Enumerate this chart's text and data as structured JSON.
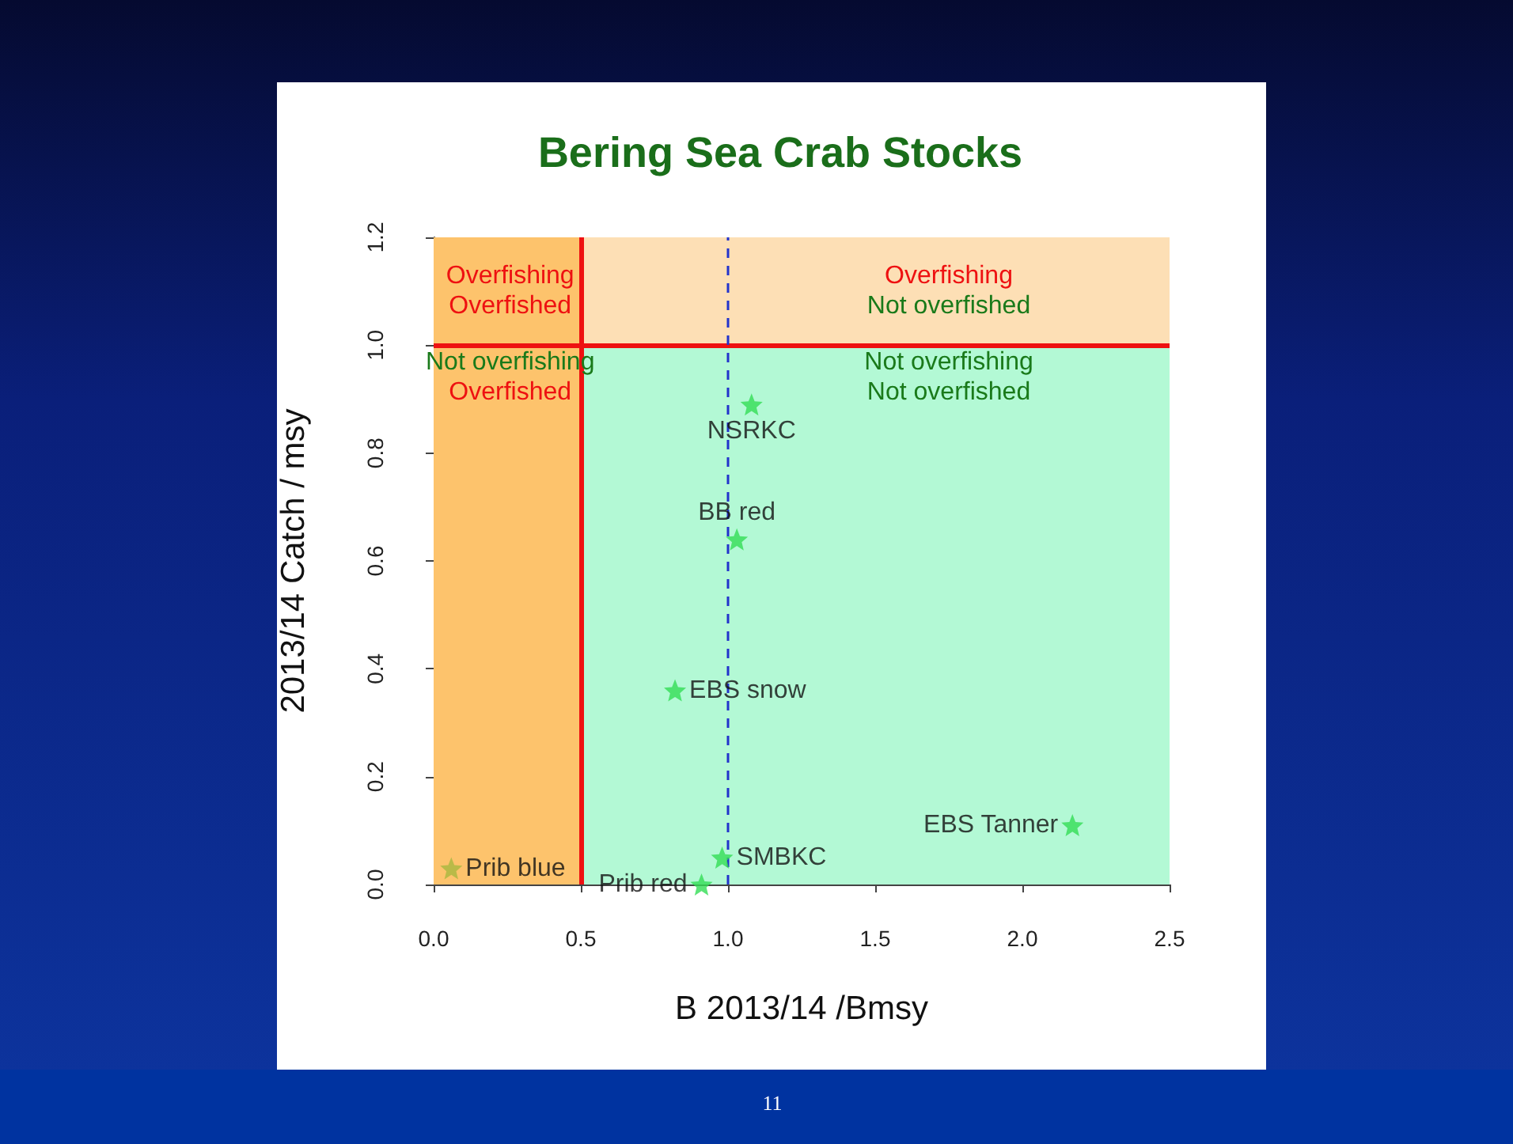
{
  "chart_data": {
    "type": "scatter",
    "title": "Bering Sea Crab Stocks",
    "xlabel": "B 2013/14 /Bmsy",
    "ylabel": "2013/14 Catch / msy",
    "marker": "star",
    "xlim": [
      0,
      2.5
    ],
    "ylim": [
      0,
      1.2
    ],
    "xticks": [
      {
        "value": 0,
        "label": "0.0"
      },
      {
        "value": 0.5,
        "label": "0.5"
      },
      {
        "value": 1,
        "label": "1.0"
      },
      {
        "value": 1.5,
        "label": "1.5"
      },
      {
        "value": 2,
        "label": "2.0"
      },
      {
        "value": 2.5,
        "label": "2.5"
      }
    ],
    "yticks": [
      {
        "value": 0,
        "label": "0.0"
      },
      {
        "value": 0.2,
        "label": "0.2"
      },
      {
        "value": 0.4,
        "label": "0.4"
      },
      {
        "value": 0.6,
        "label": "0.6"
      },
      {
        "value": 0.8,
        "label": "0.8"
      },
      {
        "value": 1,
        "label": "1.0"
      },
      {
        "value": 1.2,
        "label": "1.2"
      }
    ],
    "series": [
      {
        "name": "NSRKC",
        "color": "#33dd55",
        "x": [
          1.08
        ],
        "values": [
          0.89
        ]
      },
      {
        "name": "BB red",
        "color": "#33dd55",
        "x": [
          1.03
        ],
        "values": [
          0.64
        ]
      },
      {
        "name": "EBS snow",
        "color": "#33dd55",
        "x": [
          0.82
        ],
        "values": [
          0.36
        ]
      },
      {
        "name": "EBS Tanner",
        "color": "#33dd55",
        "x": [
          2.17
        ],
        "values": [
          0.11
        ]
      },
      {
        "name": "SMBKC",
        "color": "#33dd55",
        "x": [
          0.98
        ],
        "values": [
          0.05
        ]
      },
      {
        "name": "Prib red",
        "color": "#33dd55",
        "x": [
          0.91
        ],
        "values": [
          0.0
        ]
      },
      {
        "name": "Prib blue",
        "color": "#a8b840",
        "x": [
          0.06
        ],
        "values": [
          0.03
        ]
      }
    ],
    "bands": [
      {
        "axis": "y",
        "from": 0,
        "to": 1,
        "color": "#b3f9d5"
      },
      {
        "axis": "y",
        "from": 1,
        "to": 1.2,
        "color": "#fddfb5"
      },
      {
        "axis": "x",
        "from": 0,
        "to": 0.5,
        "color": "#fdc36c"
      }
    ],
    "ref_lines": [
      {
        "axis": "x",
        "value": 0.5,
        "color": "#ee1111",
        "line_style": "solid"
      },
      {
        "axis": "y",
        "value": 1,
        "color": "#ee1111",
        "line_style": "solid"
      },
      {
        "axis": "x",
        "value": 1,
        "color": "#2233cc",
        "line_style": "dashed"
      }
    ],
    "annotations": [
      "Overfishing\nOverfished",
      "Overfishing\nNot overfished",
      "Not overfishing\nOverfished",
      "Not overfishing\nNot overfished",
      "11"
    ]
  }
}
